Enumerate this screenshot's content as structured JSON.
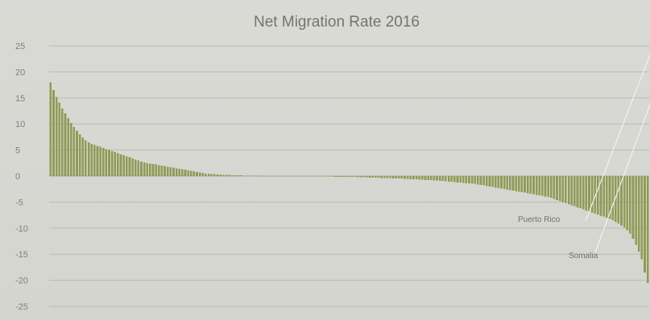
{
  "chart_data": {
    "type": "bar",
    "title": "Net Migration Rate 2016",
    "xlabel": "",
    "ylabel": "",
    "ylim": [
      -25,
      25
    ],
    "yticks": [
      25,
      20,
      15,
      10,
      5,
      0,
      -5,
      -10,
      -15,
      -20,
      -25
    ],
    "grid": true,
    "legend": "none",
    "bar_color": "#8f9b55",
    "values": [
      18,
      16.5,
      15.2,
      14.1,
      13.0,
      12.0,
      11.1,
      10.2,
      9.4,
      8.7,
      8.0,
      7.4,
      6.9,
      6.5,
      6.2,
      6.0,
      5.8,
      5.6,
      5.4,
      5.2,
      5.0,
      4.8,
      4.6,
      4.4,
      4.2,
      4.0,
      3.8,
      3.6,
      3.4,
      3.2,
      3.0,
      2.8,
      2.6,
      2.5,
      2.4,
      2.3,
      2.2,
      2.1,
      2.0,
      1.9,
      1.8,
      1.7,
      1.6,
      1.5,
      1.4,
      1.3,
      1.2,
      1.1,
      1.0,
      0.9,
      0.8,
      0.7,
      0.6,
      0.5,
      0.45,
      0.4,
      0.35,
      0.3,
      0.28,
      0.25,
      0.22,
      0.2,
      0.18,
      0.16,
      0.14,
      0.12,
      0.1,
      0.09,
      0.08,
      0.07,
      0.06,
      0.05,
      0.04,
      0.03,
      0.02,
      0.01,
      0,
      0,
      0,
      0,
      0,
      0,
      0,
      0,
      0,
      0,
      -0.01,
      -0.02,
      -0.03,
      -0.04,
      -0.05,
      -0.06,
      -0.07,
      -0.08,
      -0.09,
      -0.1,
      -0.11,
      -0.12,
      -0.13,
      -0.14,
      -0.15,
      -0.16,
      -0.17,
      -0.18,
      -0.19,
      -0.2,
      -0.22,
      -0.24,
      -0.26,
      -0.28,
      -0.3,
      -0.32,
      -0.34,
      -0.36,
      -0.38,
      -0.4,
      -0.42,
      -0.44,
      -0.46,
      -0.48,
      -0.5,
      -0.53,
      -0.56,
      -0.59,
      -0.62,
      -0.65,
      -0.68,
      -0.71,
      -0.74,
      -0.77,
      -0.8,
      -0.84,
      -0.88,
      -0.92,
      -0.96,
      -1.0,
      -1.05,
      -1.1,
      -1.15,
      -1.2,
      -1.25,
      -1.3,
      -1.35,
      -1.4,
      -1.45,
      -1.5,
      -1.6,
      -1.7,
      -1.8,
      -1.9,
      -2.0,
      -2.1,
      -2.2,
      -2.3,
      -2.4,
      -2.5,
      -2.6,
      -2.7,
      -2.8,
      -2.9,
      -3.0,
      -3.1,
      -3.2,
      -3.3,
      -3.4,
      -3.5,
      -3.6,
      -3.7,
      -3.8,
      -3.9,
      -4.0,
      -4.2,
      -4.4,
      -4.6,
      -4.8,
      -5.0,
      -5.2,
      -5.4,
      -5.6,
      -5.8,
      -6.0,
      -6.2,
      -6.4,
      -6.6,
      -6.8,
      -7.0,
      -7.2,
      -7.4,
      -7.6,
      -7.8,
      -8.0,
      -8.2,
      -8.5,
      -8.8,
      -9.1,
      -9.5,
      -9.9,
      -10.4,
      -11.0,
      -12.0,
      -13.2,
      -14.5,
      -16.0,
      -18.5,
      -20.5
    ],
    "annotations": [
      {
        "text": "Puerto Rico",
        "bar_index": 212
      },
      {
        "text": "Somalia",
        "bar_index": 218
      }
    ]
  }
}
